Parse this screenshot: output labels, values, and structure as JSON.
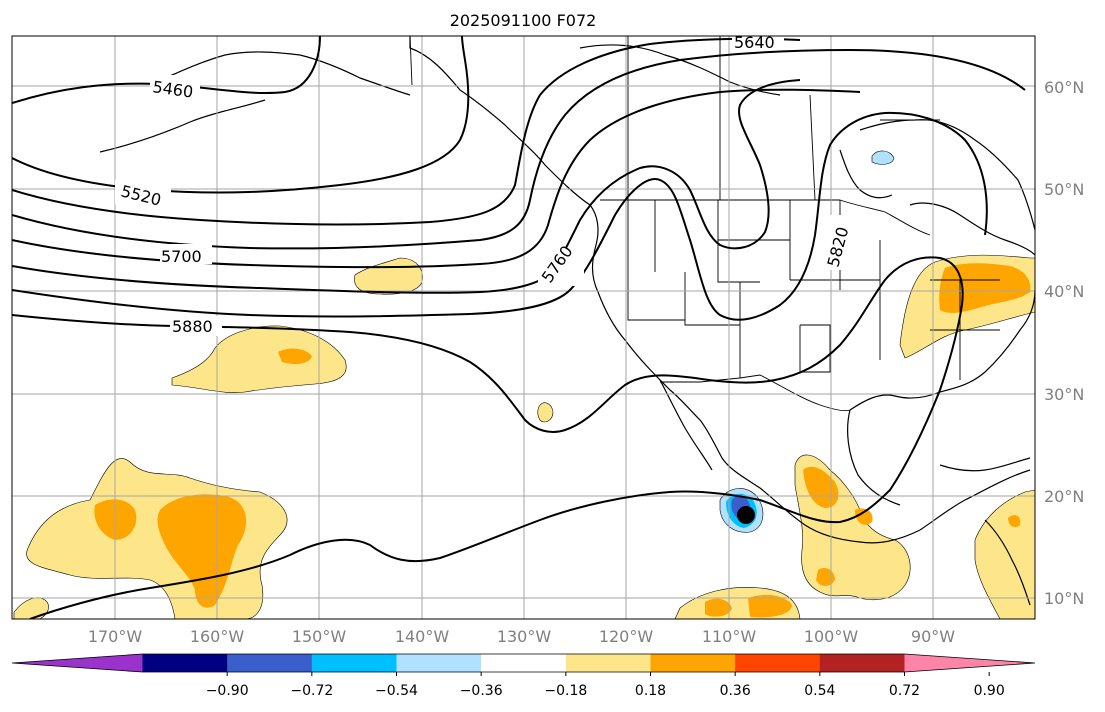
{
  "title": "2025091100 F072",
  "map": {
    "lat_labels": [
      "60°N",
      "50°N",
      "40°N",
      "30°N",
      "20°N",
      "10°N"
    ],
    "lon_labels": [
      "170°W",
      "160°W",
      "150°W",
      "140°W",
      "130°W",
      "120°W",
      "110°W",
      "100°W",
      "90°W"
    ],
    "contour_labels": [
      "5460",
      "5520",
      "5640",
      "5700",
      "5760",
      "5820",
      "5880"
    ],
    "grid_color": "#a6a6a6",
    "land_outline_color": "#000000"
  },
  "colorbar": {
    "colors": [
      "#9933cc",
      "#000080",
      "#3a5fcd",
      "#00bfff",
      "#b0e2ff",
      "#ffffff",
      "#fde68a",
      "#ffa500",
      "#ff4500",
      "#b22222",
      "#ff85a8"
    ],
    "tick_labels": [
      "−0.90",
      "−0.72",
      "−0.54",
      "−0.36",
      "−0.18",
      "0.18",
      "0.36",
      "0.54",
      "0.72",
      "0.90"
    ]
  },
  "marker": {
    "name": "storm-center-marker",
    "color": "#000000"
  }
}
